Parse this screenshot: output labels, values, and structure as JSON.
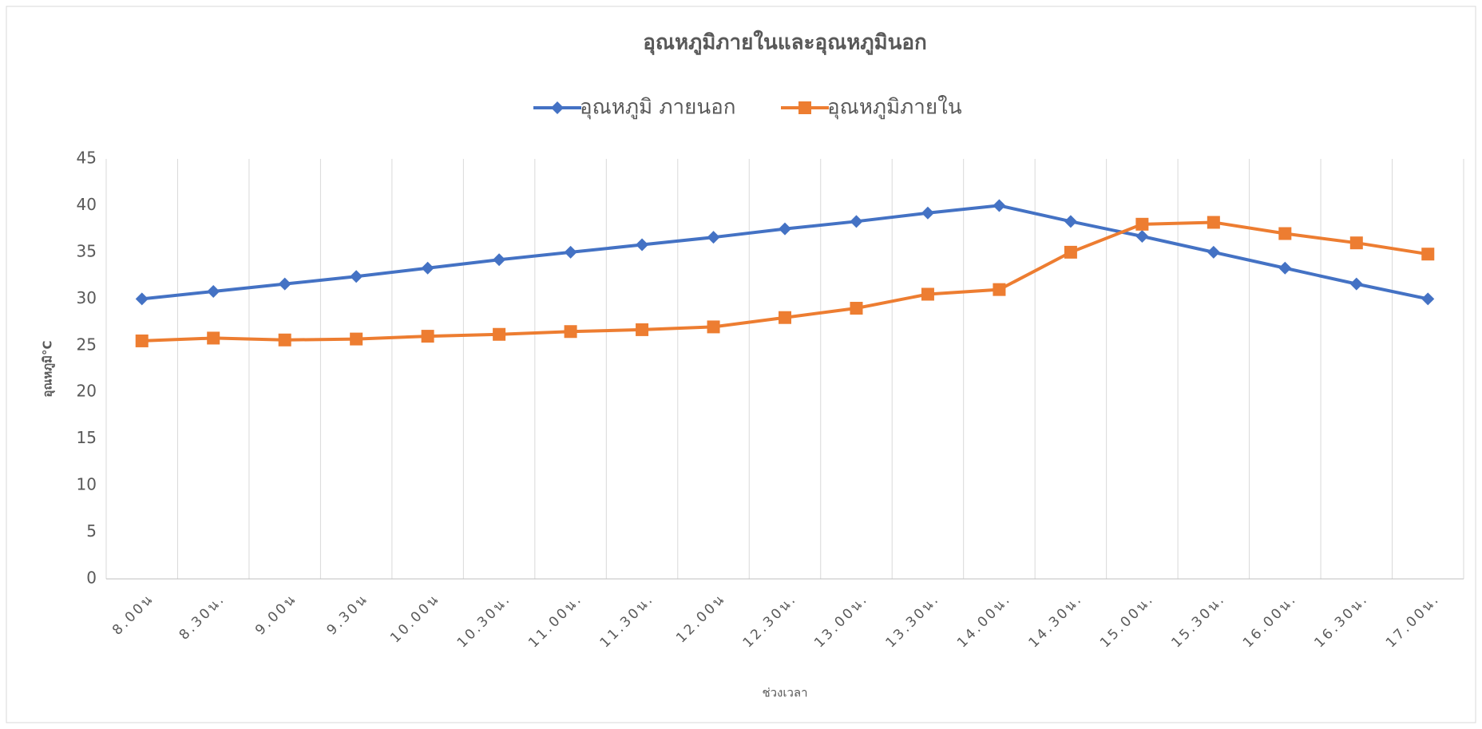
{
  "chart_data": {
    "type": "line",
    "title": "อุณหภูมิภายในและอุณหภูมินอก",
    "x_label": "ช่วงเวลา",
    "y_label": "อุณหภูมิ°C",
    "categories": [
      "8.00น",
      "8.30น.",
      "9.00น",
      "9.30น",
      "10.00น",
      "10.30น.",
      "11.00น.",
      "11.30น.",
      "12.00น",
      "12.30น.",
      "13.00น.",
      "13.30น.",
      "14.00น.",
      "14.30น.",
      "15.00น.",
      "15.30น.",
      "16.00น.",
      "16.30น.",
      "17.00น."
    ],
    "series": [
      {
        "name": "อุณหภูมิ ภายนอก",
        "color": "#4472c4",
        "marker": "diamond",
        "values": [
          30,
          30.8,
          31.6,
          32.4,
          33.3,
          34.2,
          35,
          35.8,
          36.6,
          37.5,
          38.3,
          39.2,
          40,
          38.3,
          36.7,
          35,
          33.3,
          31.6,
          30
        ]
      },
      {
        "name": "อุณหภูมิภายใน",
        "color": "#ed7d31",
        "marker": "square",
        "values": [
          25.5,
          25.8,
          25.6,
          25.7,
          26,
          26.2,
          26.5,
          26.7,
          27,
          28,
          29,
          30.5,
          31,
          35,
          38,
          38.2,
          37,
          36,
          34.8
        ]
      }
    ],
    "ylim": [
      0,
      45
    ],
    "yticks": [
      0,
      5,
      10,
      15,
      20,
      25,
      30,
      35,
      40,
      45
    ],
    "legend": "top"
  }
}
